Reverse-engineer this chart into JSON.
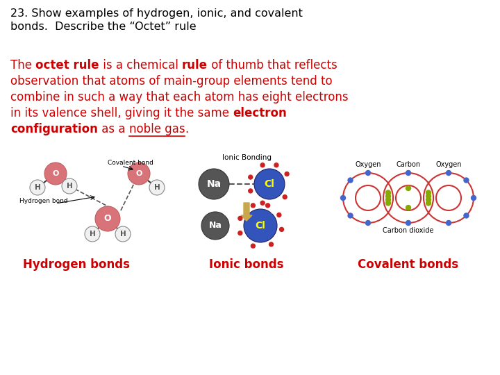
{
  "bg_color": "#ffffff",
  "title_text": "23. Show examples of hydrogen, ionic, and covalent\nbonds.  Describe the “Octet” rule",
  "title_color": "#000000",
  "title_fontsize": 11.5,
  "body_lines": [
    {
      "parts": [
        {
          "text": "The ",
          "bold": false,
          "color": "#cc0000"
        },
        {
          "text": "octet rule",
          "bold": true,
          "color": "#cc0000"
        },
        {
          "text": " is a chemical ",
          "bold": false,
          "color": "#cc0000"
        },
        {
          "text": "rule",
          "bold": true,
          "color": "#cc0000"
        },
        {
          "text": " of thumb that reflects",
          "bold": false,
          "color": "#cc0000"
        }
      ]
    },
    {
      "parts": [
        {
          "text": "observation that atoms of main-group elements tend to",
          "bold": false,
          "color": "#cc0000"
        }
      ]
    },
    {
      "parts": [
        {
          "text": "combine in such a way that each atom has eight electrons",
          "bold": false,
          "color": "#cc0000"
        }
      ]
    },
    {
      "parts": [
        {
          "text": "in its valence shell, giving it the same ",
          "bold": false,
          "color": "#cc0000"
        },
        {
          "text": "electron",
          "bold": true,
          "color": "#cc0000"
        }
      ]
    },
    {
      "parts": [
        {
          "text": "configuration",
          "bold": true,
          "color": "#cc0000"
        },
        {
          "text": " as a ",
          "bold": false,
          "color": "#cc0000"
        },
        {
          "text": "noble gas",
          "bold": false,
          "color": "#cc0000",
          "underline": true
        },
        {
          "text": ".",
          "bold": false,
          "color": "#cc0000"
        }
      ]
    }
  ],
  "label_hydrogen": "Hydrogen bonds",
  "label_ionic": "Ionic bonds",
  "label_covalent": "Covalent bonds",
  "label_color": "#cc0000",
  "label_fontsize": 12,
  "body_fontsize": 12
}
